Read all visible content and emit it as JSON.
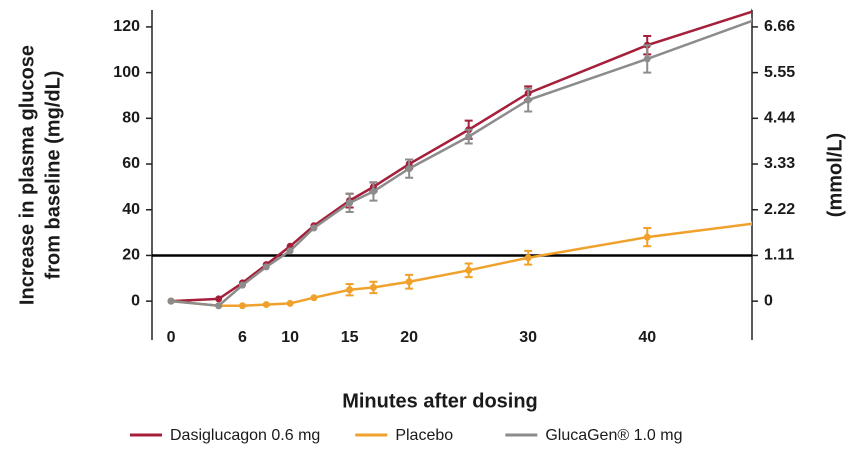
{
  "chart_data": {
    "type": "line",
    "ylabel": [
      "Increase in plasma glucose",
      "from baseline (mg/dL)"
    ],
    "y2label": "(mmol/L)",
    "xlabel": "Minutes after dosing",
    "xlim": [
      -1.6,
      48.8
    ],
    "xticks": [
      0,
      6,
      10,
      15,
      20,
      30,
      40
    ],
    "ylim": [
      -17,
      127.4
    ],
    "yticks": [
      0,
      20,
      40,
      60,
      80,
      100,
      120
    ],
    "y2lim": [
      -0.9435,
      7.0707
    ],
    "y2ticks": [
      0,
      1.11,
      2.22,
      3.33,
      4.44,
      5.55,
      6.66
    ],
    "hline": 20,
    "series": [
      {
        "name": "Dasiglucagon 0.6 mg",
        "color": "#a51f3a",
        "x": [
          0,
          4,
          6,
          8,
          10,
          12,
          15,
          17,
          20,
          25,
          30,
          40,
          49
        ],
        "values": [
          0,
          1,
          8,
          16,
          24,
          33,
          44,
          50,
          60,
          75,
          91,
          112,
          127
        ],
        "errors": [
          null,
          null,
          null,
          null,
          null,
          null,
          3,
          2,
          2,
          4,
          3,
          4,
          null
        ]
      },
      {
        "name": "Placebo",
        "color": "#f0a12b",
        "x": [
          0,
          4,
          6,
          8,
          10,
          12,
          15,
          17,
          20,
          25,
          30,
          40,
          49
        ],
        "values": [
          0,
          -2,
          -2,
          -1.5,
          -1,
          1.5,
          5,
          6,
          8.5,
          13.5,
          19,
          28,
          34
        ],
        "errors": [
          null,
          null,
          null,
          null,
          null,
          null,
          2.5,
          2.5,
          3,
          3,
          3,
          4,
          null
        ]
      },
      {
        "name": "GlucaGen® 1.0 mg",
        "color": "#8c8c8c",
        "x": [
          0,
          4,
          6,
          8,
          10,
          12,
          15,
          17,
          20,
          25,
          30,
          40,
          49
        ],
        "values": [
          0,
          -2,
          7,
          15,
          22,
          32,
          43,
          48,
          58,
          72,
          88,
          106,
          123
        ],
        "errors": [
          null,
          null,
          null,
          null,
          null,
          null,
          4,
          4,
          4,
          3,
          5,
          6,
          null
        ]
      }
    ]
  }
}
